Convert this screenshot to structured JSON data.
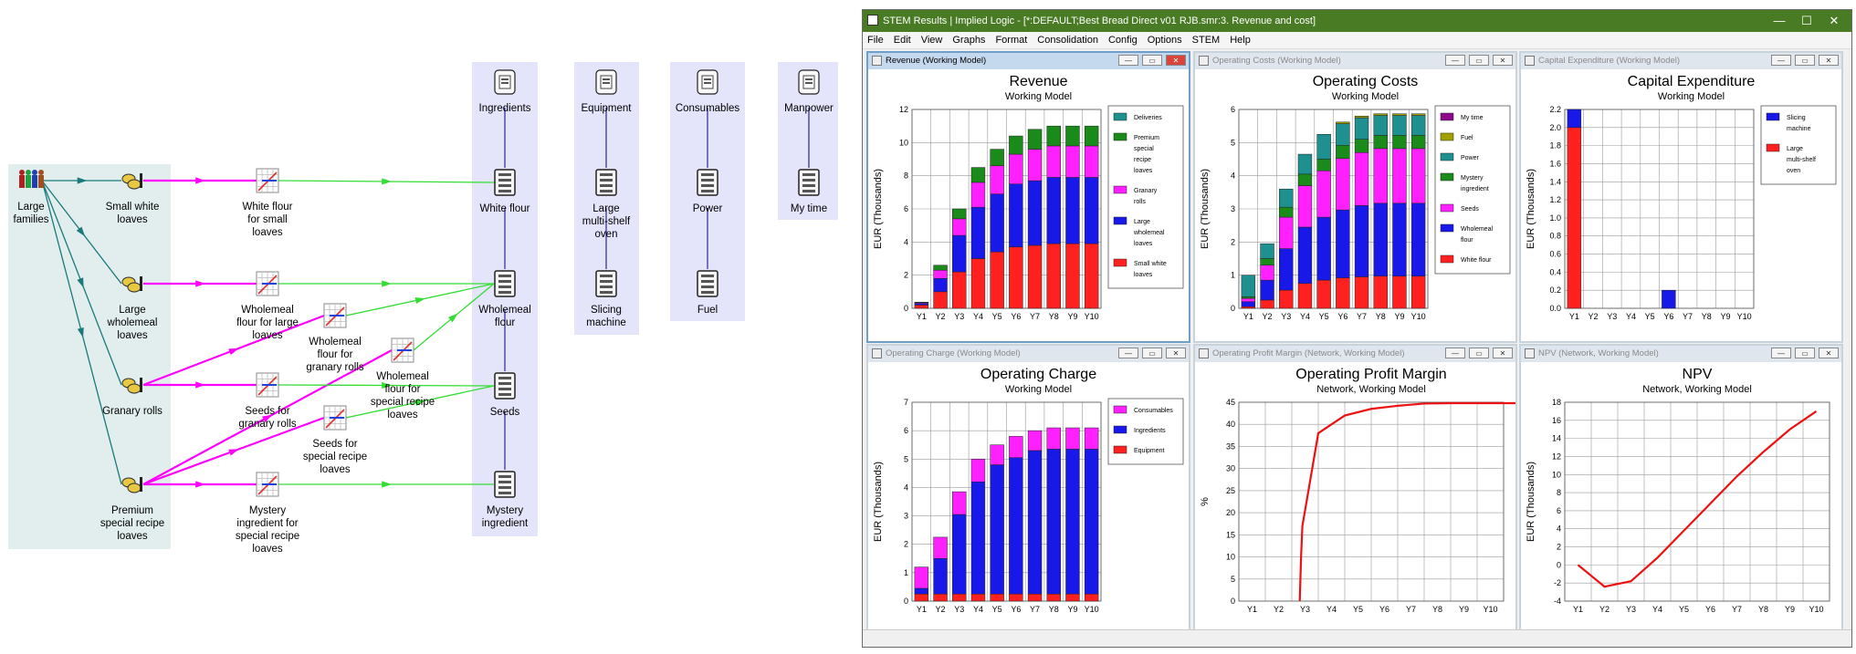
{
  "diagram": {
    "nodes": [
      {
        "id": "large-families",
        "label": "Large\nfamilies",
        "icon": "people-icon"
      },
      {
        "id": "small-white-loaves",
        "label": "Small white\nloaves",
        "icon": "transaction-icon"
      },
      {
        "id": "large-wholemeal-loaves",
        "label": "Large\nwholemeal\nloaves",
        "icon": "transaction-icon"
      },
      {
        "id": "granary-rolls",
        "label": "Granary rolls",
        "icon": "transaction-icon"
      },
      {
        "id": "premium-special-recipe-loaves",
        "label": "Premium\nspecial recipe\nloaves",
        "icon": "transaction-icon"
      },
      {
        "id": "white-flour-small",
        "label": "White flour\nfor small\nloaves",
        "icon": "function-icon"
      },
      {
        "id": "wholemeal-flour-large",
        "label": "Wholemeal\nflour for large\nloaves",
        "icon": "function-icon"
      },
      {
        "id": "wholemeal-flour-granary",
        "label": "Wholemeal\nflour for\ngranary rolls",
        "icon": "function-icon"
      },
      {
        "id": "wholemeal-flour-special",
        "label": "Wholemeal\nflour for\nspecial recipe\nloaves",
        "icon": "function-icon"
      },
      {
        "id": "seeds-granary",
        "label": "Seeds for\ngranary rolls",
        "icon": "function-icon"
      },
      {
        "id": "seeds-special",
        "label": "Seeds for\nspecial recipe\nloaves",
        "icon": "function-icon"
      },
      {
        "id": "mystery-special",
        "label": "Mystery\ningredient for\nspecial recipe\nloaves",
        "icon": "function-icon"
      },
      {
        "id": "ingredients",
        "label": "Ingredients",
        "icon": "collection-icon"
      },
      {
        "id": "white-flour",
        "label": "White flour",
        "icon": "resource-icon"
      },
      {
        "id": "wholemeal-flour",
        "label": "Wholemeal\nflour",
        "icon": "resource-icon"
      },
      {
        "id": "seeds",
        "label": "Seeds",
        "icon": "resource-icon"
      },
      {
        "id": "mystery-ingredient",
        "label": "Mystery\ningredient",
        "icon": "resource-icon"
      },
      {
        "id": "equipment",
        "label": "Equipment",
        "icon": "collection-icon"
      },
      {
        "id": "large-multi-shelf-oven",
        "label": "Large\nmulti-shelf\noven",
        "icon": "resource-icon"
      },
      {
        "id": "slicing-machine",
        "label": "Slicing\nmachine",
        "icon": "resource-icon"
      },
      {
        "id": "consumables",
        "label": "Consumables",
        "icon": "collection-icon"
      },
      {
        "id": "power",
        "label": "Power",
        "icon": "resource-icon"
      },
      {
        "id": "fuel",
        "label": "Fuel",
        "icon": "resource-icon"
      },
      {
        "id": "manpower",
        "label": "Manpower",
        "icon": "collection-icon"
      },
      {
        "id": "my-time",
        "label": "My time",
        "icon": "resource-icon"
      }
    ],
    "colors": {
      "service_group": "#e2eeee",
      "resource_group": "#e4e4fa",
      "demand_link": "#1a7a7a",
      "function_link": "#ff00ff",
      "resource_link": "#33dd33",
      "collection_link": "#000080"
    }
  },
  "window": {
    "title": "STEM Results | Implied Logic - [*:DEFAULT;Best Bread Direct v01 RJB.smr:3. Revenue and cost]",
    "controls": {
      "minimize": "—",
      "maximize": "☐",
      "close": "✕"
    },
    "menu": [
      "File",
      "Edit",
      "View",
      "Graphs",
      "Format",
      "Consolidation",
      "Config",
      "Options",
      "STEM",
      "Help"
    ],
    "pane_buttons": {
      "minimize": "—",
      "restore": "▭",
      "close": "✕"
    }
  },
  "panes": [
    {
      "title": "Revenue (Working Model)",
      "active": true,
      "chart_data": {
        "type": "bar",
        "stacked": true,
        "title": "Revenue",
        "subtitle": "Working Model",
        "ylabel": "EUR (Thousands)",
        "ylim": [
          0,
          12
        ],
        "yticks": [
          0,
          2,
          4,
          6,
          8,
          10,
          12
        ],
        "categories": [
          "Y1",
          "Y2",
          "Y3",
          "Y4",
          "Y5",
          "Y6",
          "Y7",
          "Y8",
          "Y9",
          "Y10"
        ],
        "series": [
          {
            "name": "Small white loaves",
            "color": "#ff2020",
            "values": [
              0.2,
              1.0,
              2.2,
              3.0,
              3.4,
              3.7,
              3.8,
              3.9,
              3.9,
              3.9
            ]
          },
          {
            "name": "Large wholemeal loaves",
            "color": "#1818e8",
            "values": [
              0.1,
              0.8,
              2.2,
              3.1,
              3.5,
              3.8,
              3.9,
              4.0,
              4.0,
              4.0
            ]
          },
          {
            "name": "Granary rolls",
            "color": "#ff20ff",
            "values": [
              0.05,
              0.5,
              1.0,
              1.5,
              1.7,
              1.8,
              1.9,
              1.9,
              1.9,
              1.9
            ]
          },
          {
            "name": "Premium special recipe loaves",
            "color": "#1a8a1a",
            "values": [
              0.02,
              0.3,
              0.6,
              0.9,
              1.0,
              1.1,
              1.2,
              1.2,
              1.2,
              1.2
            ]
          },
          {
            "name": "Deliveries",
            "color": "#1e9090",
            "values": [
              0,
              0,
              0,
              0,
              0,
              0,
              0,
              0,
              0,
              0
            ]
          }
        ],
        "legend": [
          "Deliveries",
          "Premium special recipe loaves",
          "Granary rolls",
          "Large wholemeal loaves",
          "Small white loaves"
        ]
      }
    },
    {
      "title": "Operating Costs (Working Model)",
      "active": false,
      "chart_data": {
        "type": "bar",
        "stacked": true,
        "title": "Operating Costs",
        "subtitle": "Working Model",
        "ylabel": "EUR (Thousands)",
        "ylim": [
          0,
          6
        ],
        "yticks": [
          0,
          1,
          2,
          3,
          4,
          5,
          6
        ],
        "categories": [
          "Y1",
          "Y2",
          "Y3",
          "Y4",
          "Y5",
          "Y6",
          "Y7",
          "Y8",
          "Y9",
          "Y10"
        ],
        "series": [
          {
            "name": "White flour",
            "color": "#ff2020",
            "values": [
              0.05,
              0.25,
              0.55,
              0.75,
              0.85,
              0.92,
              0.95,
              0.97,
              0.97,
              0.97
            ]
          },
          {
            "name": "Wholemeal flour",
            "color": "#1818e8",
            "values": [
              0.15,
              0.6,
              1.25,
              1.7,
              1.9,
              2.05,
              2.15,
              2.2,
              2.2,
              2.2
            ]
          },
          {
            "name": "Seeds",
            "color": "#ff20ff",
            "values": [
              0.1,
              0.45,
              0.95,
              1.25,
              1.4,
              1.55,
              1.6,
              1.65,
              1.65,
              1.65
            ]
          },
          {
            "name": "Mystery ingredient",
            "color": "#1a8a1a",
            "values": [
              0.05,
              0.2,
              0.3,
              0.35,
              0.35,
              0.4,
              0.4,
              0.4,
              0.4,
              0.4
            ]
          },
          {
            "name": "Power",
            "color": "#1e9090",
            "values": [
              0.65,
              0.45,
              0.55,
              0.6,
              0.75,
              0.65,
              0.65,
              0.6,
              0.6,
              0.6
            ]
          },
          {
            "name": "Fuel",
            "color": "#a0a000",
            "values": [
              0,
              0,
              0,
              0,
              0,
              0.05,
              0.05,
              0.05,
              0.05,
              0.05
            ]
          },
          {
            "name": "My time",
            "color": "#8a0a8a",
            "values": [
              0,
              0,
              0,
              0,
              0,
              0,
              0,
              0,
              0,
              0
            ]
          }
        ],
        "legend": [
          "My time",
          "Fuel",
          "Power",
          "Mystery ingredient",
          "Seeds",
          "Wholemeal flour",
          "White flour"
        ]
      }
    },
    {
      "title": "Capital Expenditure (Working Model)",
      "active": false,
      "chart_data": {
        "type": "bar",
        "stacked": true,
        "title": "Capital Expenditure",
        "subtitle": "Working Model",
        "ylabel": "EUR (Thousands)",
        "ylim": [
          0,
          2.2
        ],
        "yticks": [
          0.0,
          0.2,
          0.4,
          0.6,
          0.8,
          1.0,
          1.2,
          1.4,
          1.6,
          1.8,
          2.0,
          2.2
        ],
        "categories": [
          "Y1",
          "Y2",
          "Y3",
          "Y4",
          "Y5",
          "Y6",
          "Y7",
          "Y8",
          "Y9",
          "Y10"
        ],
        "series": [
          {
            "name": "Large multi-shelf oven",
            "color": "#ff2020",
            "values": [
              2.0,
              0,
              0,
              0,
              0,
              0,
              0,
              0,
              0,
              0
            ]
          },
          {
            "name": "Slicing machine",
            "color": "#1818e8",
            "values": [
              0.2,
              0,
              0,
              0,
              0,
              0.2,
              0,
              0,
              0,
              0
            ]
          }
        ],
        "legend": [
          "Slicing machine",
          "Large multi-shelf oven"
        ]
      }
    },
    {
      "title": "Operating Charge (Working Model)",
      "active": false,
      "chart_data": {
        "type": "bar",
        "stacked": true,
        "title": "Operating Charge",
        "subtitle": "Working Model",
        "ylabel": "EUR (Thousands)",
        "ylim": [
          0,
          7
        ],
        "yticks": [
          0,
          1,
          2,
          3,
          4,
          5,
          6,
          7
        ],
        "categories": [
          "Y1",
          "Y2",
          "Y3",
          "Y4",
          "Y5",
          "Y6",
          "Y7",
          "Y8",
          "Y9",
          "Y10"
        ],
        "series": [
          {
            "name": "Equipment",
            "color": "#ff2020",
            "values": [
              0.25,
              0.25,
              0.25,
              0.25,
              0.25,
              0.25,
              0.25,
              0.25,
              0.25,
              0.25
            ]
          },
          {
            "name": "Ingredients",
            "color": "#1818e8",
            "values": [
              0.2,
              1.25,
              2.8,
              3.95,
              4.55,
              4.8,
              5.05,
              5.1,
              5.1,
              5.1
            ]
          },
          {
            "name": "Consumables",
            "color": "#ff20ff",
            "values": [
              0.75,
              0.75,
              0.8,
              0.8,
              0.7,
              0.75,
              0.7,
              0.75,
              0.75,
              0.75
            ]
          }
        ],
        "legend": [
          "Consumables",
          "Ingredients",
          "Equipment"
        ]
      }
    },
    {
      "title": "Operating Profit Margin (Network, Working Model)",
      "active": false,
      "chart_data": {
        "type": "line",
        "title": "Operating Profit Margin",
        "subtitle": "Network, Working Model",
        "ylabel": "%",
        "ylim": [
          0,
          45
        ],
        "yticks": [
          0,
          5,
          10,
          15,
          20,
          25,
          30,
          35,
          40,
          45
        ],
        "categories": [
          "Y1",
          "Y2",
          "Y3",
          "Y4",
          "Y5",
          "Y6",
          "Y7",
          "Y8",
          "Y9",
          "Y10"
        ],
        "series": [
          {
            "name": "",
            "color": "#ee1111",
            "points": [
              [
                2.3,
                0
              ],
              [
                2.35,
                10
              ],
              [
                2.4,
                17
              ],
              [
                3.0,
                38
              ],
              [
                4.0,
                42
              ],
              [
                5.0,
                43.5
              ],
              [
                6.0,
                44.2
              ],
              [
                7.0,
                44.7
              ],
              [
                8.0,
                44.8
              ],
              [
                9.0,
                44.8
              ],
              [
                10.0,
                44.8
              ],
              [
                10.5,
                44.8
              ]
            ]
          }
        ]
      }
    },
    {
      "title": "NPV (Network, Working Model)",
      "active": false,
      "chart_data": {
        "type": "line",
        "title": "NPV",
        "subtitle": "Network, Working Model",
        "ylabel": "EUR (Thousands)",
        "ylim": [
          -4,
          18
        ],
        "yticks": [
          -4,
          -2,
          0,
          2,
          4,
          6,
          8,
          10,
          12,
          14,
          16,
          18
        ],
        "categories": [
          "Y1",
          "Y2",
          "Y3",
          "Y4",
          "Y5",
          "Y6",
          "Y7",
          "Y8",
          "Y9",
          "Y10"
        ],
        "series": [
          {
            "name": "",
            "color": "#ee1111",
            "points": [
              [
                0.5,
                0
              ],
              [
                1.5,
                -2.4
              ],
              [
                2.5,
                -1.8
              ],
              [
                3.5,
                0.8
              ],
              [
                4.5,
                3.8
              ],
              [
                5.5,
                6.8
              ],
              [
                6.5,
                9.8
              ],
              [
                7.5,
                12.5
              ],
              [
                8.5,
                15
              ],
              [
                9.5,
                17
              ]
            ]
          }
        ]
      }
    }
  ]
}
